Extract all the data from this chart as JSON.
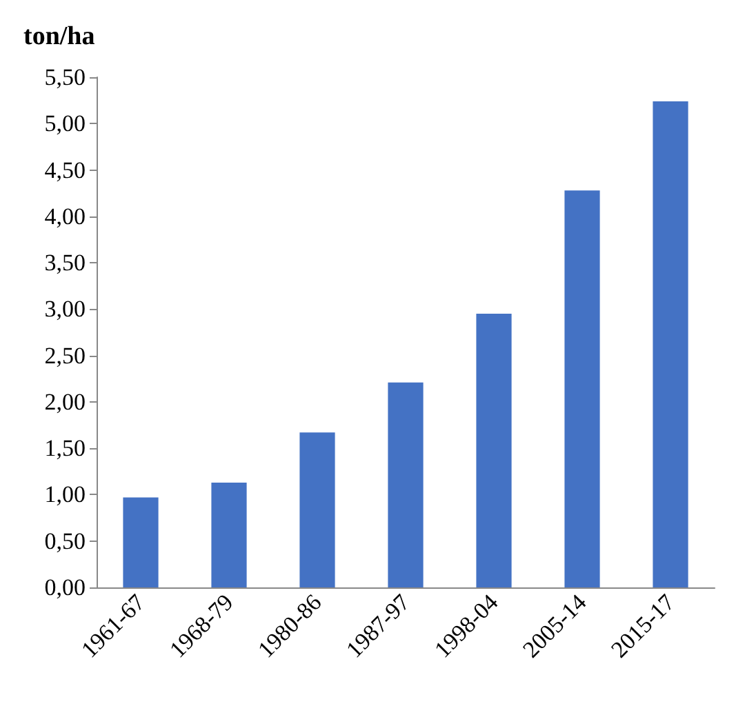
{
  "chart_data": {
    "type": "bar",
    "ylabel": "ton/ha",
    "categories": [
      "1961-67",
      "1968-79",
      "1980-86",
      "1987-97",
      "1998-04",
      "2005-14",
      "2015-17"
    ],
    "values": [
      0.97,
      1.13,
      1.67,
      2.21,
      2.95,
      4.28,
      5.24
    ],
    "color": "#4472c4",
    "ylim": [
      0,
      5.5
    ],
    "yticks": [
      {
        "value": 0,
        "label": "0,00"
      },
      {
        "value": 0.5,
        "label": "0,50"
      },
      {
        "value": 1,
        "label": "1,00"
      },
      {
        "value": 1.5,
        "label": "1,50"
      },
      {
        "value": 2,
        "label": "2,00"
      },
      {
        "value": 2.5,
        "label": "2,50"
      },
      {
        "value": 3,
        "label": "3,00"
      },
      {
        "value": 3.5,
        "label": "3,50"
      },
      {
        "value": 4,
        "label": "4,00"
      },
      {
        "value": 4.5,
        "label": "4,50"
      },
      {
        "value": 5,
        "label": "5,00"
      },
      {
        "value": 5.5,
        "label": "5,50"
      }
    ],
    "grid": false
  }
}
